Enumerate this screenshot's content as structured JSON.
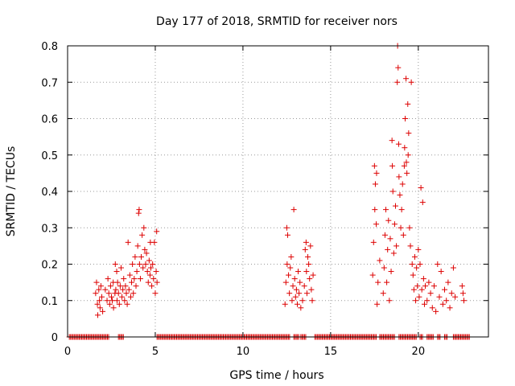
{
  "chart_data": {
    "type": "scatter",
    "title": "Day 177 of 2018, SRMTID for receiver nors",
    "xlabel": "GPS time / hours",
    "ylabel": "SRMTID / TECUs",
    "xlim": [
      0,
      24
    ],
    "ylim": [
      0,
      0.8
    ],
    "grid": true,
    "marker": "+",
    "colors": {
      "point": "#dd0000",
      "grid": "#999999",
      "axis": "#000000"
    },
    "xticks": [
      0,
      5,
      10,
      15,
      20
    ],
    "xtick_labels": [
      "0",
      "5",
      "10",
      "15",
      "20"
    ],
    "yticks": [
      0,
      0.1,
      0.2,
      0.3,
      0.4,
      0.5,
      0.6,
      0.7,
      0.8
    ],
    "ytick_labels": [
      "0",
      "0.1",
      "0.2",
      "0.3",
      "0.4",
      "0.5",
      "0.6",
      "0.7",
      "0.8"
    ],
    "series": [
      {
        "name": "SRMTID",
        "points": [
          [
            1.6,
            0.12
          ],
          [
            1.65,
            0.15
          ],
          [
            1.7,
            0.09
          ],
          [
            1.72,
            0.06
          ],
          [
            1.78,
            0.13
          ],
          [
            1.82,
            0.1
          ],
          [
            1.85,
            0.08
          ],
          [
            1.9,
            0.14
          ],
          [
            1.95,
            0.11
          ],
          [
            2.0,
            0.07
          ],
          [
            2.15,
            0.13
          ],
          [
            2.25,
            0.1
          ],
          [
            2.3,
            0.16
          ],
          [
            2.35,
            0.12
          ],
          [
            2.4,
            0.09
          ],
          [
            2.45,
            0.14
          ],
          [
            2.5,
            0.11
          ],
          [
            2.55,
            0.1
          ],
          [
            2.6,
            0.15
          ],
          [
            2.62,
            0.08
          ],
          [
            2.7,
            0.12
          ],
          [
            2.72,
            0.2
          ],
          [
            2.75,
            0.13
          ],
          [
            2.8,
            0.18
          ],
          [
            2.82,
            0.1
          ],
          [
            2.85,
            0.15
          ],
          [
            2.9,
            0.12
          ],
          [
            2.95,
            0.09
          ],
          [
            3.0,
            0.14
          ],
          [
            3.05,
            0.19
          ],
          [
            3.1,
            0.11
          ],
          [
            3.15,
            0.13
          ],
          [
            3.2,
            0.16
          ],
          [
            3.25,
            0.1
          ],
          [
            3.3,
            0.14
          ],
          [
            3.35,
            0.12
          ],
          [
            3.4,
            0.09
          ],
          [
            3.45,
            0.26
          ],
          [
            3.5,
            0.13
          ],
          [
            3.55,
            0.17
          ],
          [
            3.6,
            0.11
          ],
          [
            3.65,
            0.15
          ],
          [
            3.7,
            0.2
          ],
          [
            3.75,
            0.12
          ],
          [
            3.8,
            0.16
          ],
          [
            3.85,
            0.22
          ],
          [
            3.9,
            0.14
          ],
          [
            3.95,
            0.18
          ],
          [
            4.0,
            0.25
          ],
          [
            4.05,
            0.34
          ],
          [
            4.08,
            0.35
          ],
          [
            4.1,
            0.2
          ],
          [
            4.15,
            0.16
          ],
          [
            4.2,
            0.22
          ],
          [
            4.25,
            0.28
          ],
          [
            4.3,
            0.19
          ],
          [
            4.35,
            0.3
          ],
          [
            4.4,
            0.24
          ],
          [
            4.45,
            0.2
          ],
          [
            4.5,
            0.23
          ],
          [
            4.55,
            0.18
          ],
          [
            4.6,
            0.15
          ],
          [
            4.65,
            0.21
          ],
          [
            4.7,
            0.17
          ],
          [
            4.72,
            0.26
          ],
          [
            4.75,
            0.19
          ],
          [
            4.8,
            0.14
          ],
          [
            4.85,
            0.2
          ],
          [
            4.9,
            0.16
          ],
          [
            4.95,
            0.26
          ],
          [
            5.0,
            0.12
          ],
          [
            5.05,
            0.18
          ],
          [
            5.08,
            0.29
          ],
          [
            5.1,
            0.15
          ],
          [
            12.4,
            0.09
          ],
          [
            12.45,
            0.15
          ],
          [
            12.5,
            0.3
          ],
          [
            12.52,
            0.2
          ],
          [
            12.55,
            0.28
          ],
          [
            12.6,
            0.17
          ],
          [
            12.65,
            0.12
          ],
          [
            12.7,
            0.19
          ],
          [
            12.75,
            0.22
          ],
          [
            12.8,
            0.1
          ],
          [
            12.85,
            0.14
          ],
          [
            12.9,
            0.35
          ],
          [
            12.95,
            0.16
          ],
          [
            13.0,
            0.11
          ],
          [
            13.05,
            0.13
          ],
          [
            13.1,
            0.09
          ],
          [
            13.15,
            0.18
          ],
          [
            13.2,
            0.12
          ],
          [
            13.25,
            0.15
          ],
          [
            13.3,
            0.08
          ],
          [
            13.4,
            0.1
          ],
          [
            13.5,
            0.14
          ],
          [
            13.55,
            0.24
          ],
          [
            13.6,
            0.26
          ],
          [
            13.62,
            0.18
          ],
          [
            13.65,
            0.12
          ],
          [
            13.7,
            0.22
          ],
          [
            13.75,
            0.2
          ],
          [
            13.8,
            0.16
          ],
          [
            13.85,
            0.25
          ],
          [
            13.9,
            0.13
          ],
          [
            13.95,
            0.1
          ],
          [
            14.0,
            0.17
          ],
          [
            17.4,
            0.17
          ],
          [
            17.45,
            0.26
          ],
          [
            17.5,
            0.47
          ],
          [
            17.52,
            0.35
          ],
          [
            17.55,
            0.42
          ],
          [
            17.6,
            0.31
          ],
          [
            17.62,
            0.45
          ],
          [
            17.65,
            0.09
          ],
          [
            17.7,
            0.15
          ],
          [
            17.8,
            0.21
          ],
          [
            18.0,
            0.12
          ],
          [
            18.05,
            0.19
          ],
          [
            18.1,
            0.28
          ],
          [
            18.15,
            0.35
          ],
          [
            18.2,
            0.15
          ],
          [
            18.25,
            0.24
          ],
          [
            18.3,
            0.32
          ],
          [
            18.35,
            0.1
          ],
          [
            18.4,
            0.27
          ],
          [
            18.45,
            0.18
          ],
          [
            18.5,
            0.54
          ],
          [
            18.52,
            0.47
          ],
          [
            18.55,
            0.4
          ],
          [
            18.6,
            0.23
          ],
          [
            18.65,
            0.31
          ],
          [
            18.7,
            0.36
          ],
          [
            18.75,
            0.25
          ],
          [
            18.8,
            0.7
          ],
          [
            18.82,
            0.8
          ],
          [
            18.85,
            0.74
          ],
          [
            18.88,
            0.53
          ],
          [
            18.9,
            0.44
          ],
          [
            18.95,
            0.39
          ],
          [
            19.0,
            0.3
          ],
          [
            19.05,
            0.35
          ],
          [
            19.1,
            0.42
          ],
          [
            19.15,
            0.28
          ],
          [
            19.2,
            0.47
          ],
          [
            19.22,
            0.52
          ],
          [
            19.25,
            0.6
          ],
          [
            19.3,
            0.71
          ],
          [
            19.32,
            0.48
          ],
          [
            19.35,
            0.45
          ],
          [
            19.4,
            0.64
          ],
          [
            19.42,
            0.5
          ],
          [
            19.45,
            0.56
          ],
          [
            19.5,
            0.3
          ],
          [
            19.55,
            0.25
          ],
          [
            19.6,
            0.7
          ],
          [
            19.65,
            0.2
          ],
          [
            19.7,
            0.17
          ],
          [
            19.75,
            0.13
          ],
          [
            19.8,
            0.22
          ],
          [
            19.85,
            0.1
          ],
          [
            19.9,
            0.19
          ],
          [
            19.95,
            0.14
          ],
          [
            20.0,
            0.24
          ],
          [
            20.05,
            0.11
          ],
          [
            20.1,
            0.2
          ],
          [
            20.15,
            0.41
          ],
          [
            20.2,
            0.13
          ],
          [
            20.25,
            0.37
          ],
          [
            20.3,
            0.16
          ],
          [
            20.35,
            0.09
          ],
          [
            20.4,
            0.14
          ],
          [
            20.5,
            0.1
          ],
          [
            20.6,
            0.15
          ],
          [
            20.7,
            0.12
          ],
          [
            20.8,
            0.08
          ],
          [
            20.9,
            0.14
          ],
          [
            21.0,
            0.07
          ],
          [
            21.1,
            0.2
          ],
          [
            21.2,
            0.11
          ],
          [
            21.3,
            0.18
          ],
          [
            21.4,
            0.09
          ],
          [
            21.5,
            0.13
          ],
          [
            21.6,
            0.1
          ],
          [
            21.7,
            0.15
          ],
          [
            21.8,
            0.08
          ],
          [
            21.9,
            0.12
          ],
          [
            22.0,
            0.19
          ],
          [
            22.1,
            0.11
          ],
          [
            22.5,
            0.14
          ],
          [
            22.55,
            0.12
          ],
          [
            22.6,
            0.1
          ]
        ]
      }
    ],
    "zero_band_segments": [
      [
        0.1,
        2.35
      ],
      [
        2.9,
        3.2
      ],
      [
        5.1,
        12.7
      ],
      [
        12.9,
        13.2
      ],
      [
        13.3,
        13.6
      ],
      [
        14.1,
        17.6
      ],
      [
        17.8,
        18.7
      ],
      [
        18.9,
        19.9
      ],
      [
        20.1,
        20.3
      ],
      [
        20.5,
        20.9
      ],
      [
        21.1,
        21.3
      ],
      [
        21.5,
        21.7
      ],
      [
        22.0,
        22.95
      ]
    ]
  }
}
